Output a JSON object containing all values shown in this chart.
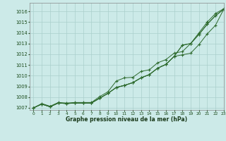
{
  "xlabel": "Graphe pression niveau de la mer (hPa)",
  "bg_color": "#cceae8",
  "grid_color": "#aacfcc",
  "line_color": "#2d6a2d",
  "xlim": [
    -0.5,
    23
  ],
  "ylim": [
    1006.8,
    1016.8
  ],
  "yticks": [
    1007,
    1008,
    1009,
    1010,
    1011,
    1012,
    1013,
    1014,
    1015,
    1016
  ],
  "xticks": [
    0,
    1,
    2,
    3,
    4,
    5,
    6,
    7,
    8,
    9,
    10,
    11,
    12,
    13,
    14,
    15,
    16,
    17,
    18,
    19,
    20,
    21,
    22,
    23
  ],
  "line1": [
    1007.0,
    1007.4,
    1007.15,
    1007.5,
    1007.45,
    1007.5,
    1007.5,
    1007.5,
    1008.05,
    1008.5,
    1009.5,
    1009.8,
    1009.85,
    1010.4,
    1010.55,
    1011.2,
    1011.5,
    1012.1,
    1012.25,
    1013.0,
    1014.0,
    1015.0,
    1015.8,
    1016.25
  ],
  "line2": [
    1007.0,
    1007.35,
    1007.1,
    1007.45,
    1007.4,
    1007.45,
    1007.45,
    1007.45,
    1007.9,
    1008.35,
    1008.9,
    1009.1,
    1009.35,
    1009.8,
    1010.1,
    1010.7,
    1011.05,
    1011.8,
    1011.95,
    1012.1,
    1012.9,
    1013.9,
    1014.7,
    1016.2
  ],
  "line3": [
    1007.0,
    1007.35,
    1007.1,
    1007.45,
    1007.4,
    1007.45,
    1007.45,
    1007.45,
    1007.9,
    1008.35,
    1008.9,
    1009.1,
    1009.35,
    1009.8,
    1010.1,
    1010.7,
    1011.05,
    1011.8,
    1012.85,
    1013.0,
    1013.85,
    1014.8,
    1015.6,
    1016.2
  ],
  "line4": [
    1007.0,
    1007.35,
    1007.1,
    1007.45,
    1007.4,
    1007.45,
    1007.45,
    1007.45,
    1007.9,
    1008.35,
    1008.9,
    1009.1,
    1009.35,
    1009.8,
    1010.1,
    1010.7,
    1011.05,
    1011.8,
    1012.85,
    1013.0,
    1013.85,
    1014.8,
    1015.6,
    1016.2
  ]
}
